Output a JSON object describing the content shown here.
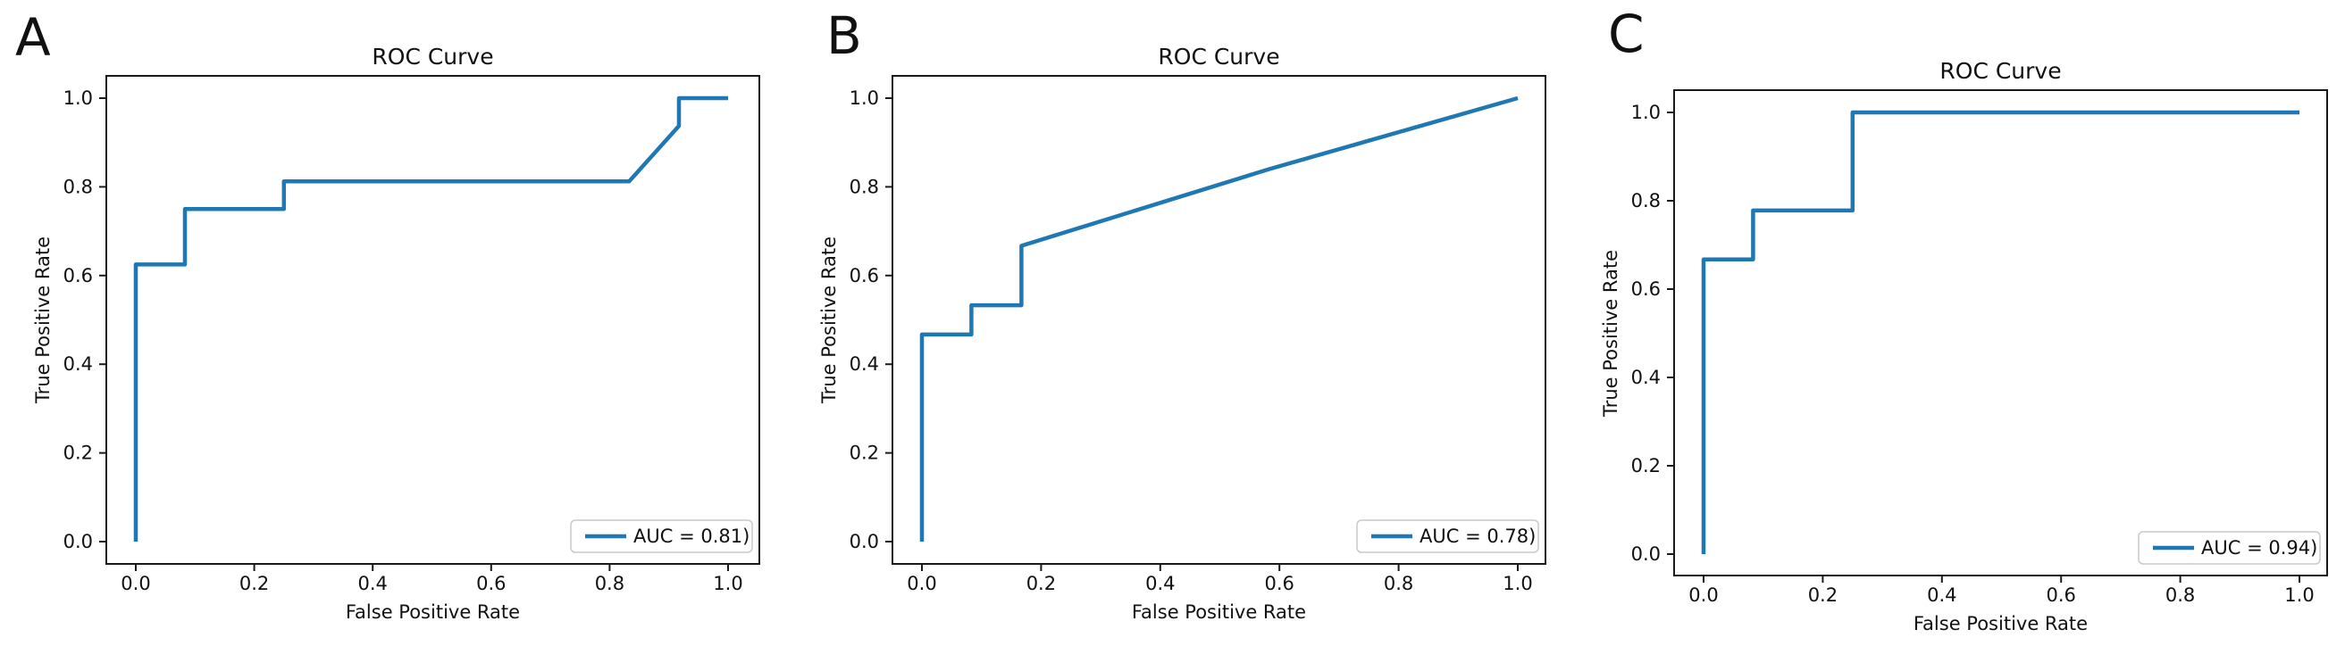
{
  "figure": {
    "background": "#ffffff",
    "panel_count": 3
  },
  "palette": {
    "curve_blue": "#1f77b4",
    "axis_black": "#1a1a1a",
    "legend_border": "#c9c9c9"
  },
  "chart_data": [
    {
      "type": "line",
      "panel_label": "A",
      "title": "ROC Curve",
      "xlabel": "False Positive Rate",
      "ylabel": "True Positive Rate",
      "legend_label": "AUC = 0.81)",
      "legend_position": "lower right",
      "auc": 0.81,
      "xlim": [
        0.0,
        1.0
      ],
      "ylim": [
        0.0,
        1.0
      ],
      "grid": false,
      "xticks": [
        0.0,
        0.2,
        0.4,
        0.6,
        0.8,
        1.0
      ],
      "yticks": [
        0.0,
        0.2,
        0.4,
        0.6,
        0.8,
        1.0
      ],
      "xtick_labels": [
        "0.0",
        "0.2",
        "0.4",
        "0.6",
        "0.8",
        "1.0"
      ],
      "ytick_labels": [
        "0.0",
        "0.2",
        "0.4",
        "0.6",
        "0.8",
        "1.0"
      ],
      "series": [
        {
          "name": "ROC curve",
          "fpr": [
            0.0,
            0.0,
            0.083,
            0.083,
            0.25,
            0.25,
            0.833,
            0.917,
            0.917,
            1.0
          ],
          "tpr": [
            0.0,
            0.625,
            0.625,
            0.75,
            0.75,
            0.8125,
            0.8125,
            0.9375,
            1.0,
            1.0
          ]
        }
      ]
    },
    {
      "type": "line",
      "panel_label": "B",
      "title": "ROC Curve",
      "xlabel": "False Positive Rate",
      "ylabel": "True Positive Rate",
      "legend_label": "AUC = 0.78)",
      "legend_position": "lower right",
      "auc": 0.78,
      "xlim": [
        0.0,
        1.0
      ],
      "ylim": [
        0.0,
        1.0
      ],
      "grid": false,
      "xticks": [
        0.0,
        0.2,
        0.4,
        0.6,
        0.8,
        1.0
      ],
      "yticks": [
        0.0,
        0.2,
        0.4,
        0.6,
        0.8,
        1.0
      ],
      "xtick_labels": [
        "0.0",
        "0.2",
        "0.4",
        "0.6",
        "0.8",
        "1.0"
      ],
      "ytick_labels": [
        "0.0",
        "0.2",
        "0.4",
        "0.6",
        "0.8",
        "1.0"
      ],
      "series": [
        {
          "name": "ROC curve",
          "fpr": [
            0.0,
            0.0,
            0.083,
            0.083,
            0.167,
            0.167,
            0.583,
            1.0
          ],
          "tpr": [
            0.0,
            0.467,
            0.467,
            0.533,
            0.533,
            0.667,
            0.84,
            1.0
          ]
        }
      ]
    },
    {
      "type": "line",
      "panel_label": "C",
      "title": "ROC Curve",
      "xlabel": "False Positive Rate",
      "ylabel": "True Positive Rate",
      "legend_label": "AUC = 0.94)",
      "legend_position": "lower right",
      "auc": 0.94,
      "xlim": [
        0.0,
        1.0
      ],
      "ylim": [
        0.0,
        1.0
      ],
      "grid": false,
      "xticks": [
        0.0,
        0.2,
        0.4,
        0.6,
        0.8,
        1.0
      ],
      "yticks": [
        0.0,
        0.2,
        0.4,
        0.6,
        0.8,
        1.0
      ],
      "xtick_labels": [
        "0.0",
        "0.2",
        "0.4",
        "0.6",
        "0.8",
        "1.0"
      ],
      "ytick_labels": [
        "0.0",
        "0.2",
        "0.4",
        "0.6",
        "0.8",
        "1.0"
      ],
      "series": [
        {
          "name": "ROC curve",
          "fpr": [
            0.0,
            0.0,
            0.083,
            0.083,
            0.25,
            0.25,
            1.0
          ],
          "tpr": [
            0.0,
            0.667,
            0.667,
            0.778,
            0.778,
            1.0,
            1.0
          ]
        }
      ]
    }
  ]
}
